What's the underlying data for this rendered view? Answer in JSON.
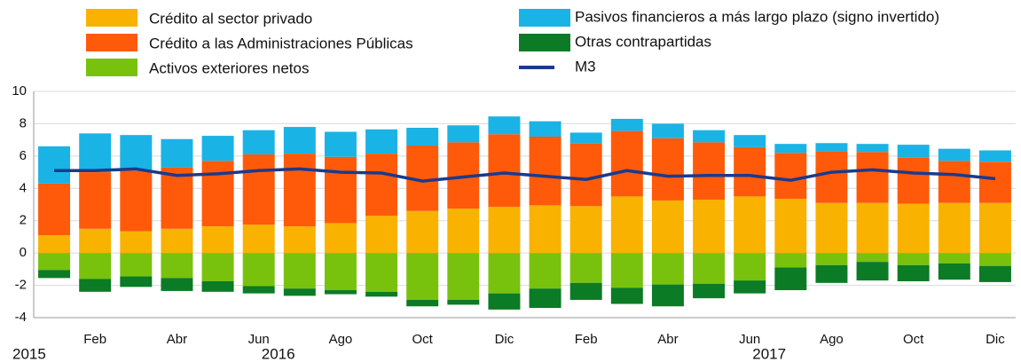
{
  "chart_data": {
    "type": "bar",
    "categories": [
      null,
      "Feb",
      null,
      "Abr",
      null,
      "Jun",
      null,
      "Ago",
      null,
      "Oct",
      null,
      "Dic",
      null,
      "Feb",
      null,
      "Abr",
      null,
      "Jun",
      null,
      "Ago",
      null,
      "Oct",
      null,
      "Dic"
    ],
    "year_labels": [
      "2015",
      "2016",
      "2017"
    ],
    "series": [
      {
        "name": "Crédito al sector privado",
        "color": "#f9b200",
        "values": [
          1.1,
          1.5,
          1.35,
          1.5,
          1.65,
          1.75,
          1.65,
          1.85,
          2.3,
          2.6,
          2.75,
          2.85,
          2.95,
          2.9,
          3.5,
          3.25,
          3.3,
          3.5,
          3.35,
          3.1,
          3.1,
          3.05,
          3.1,
          3.1
        ]
      },
      {
        "name": "Crédito a las Administraciones Públicas",
        "color": "#ff5a0a",
        "values": [
          3.2,
          3.5,
          3.75,
          3.8,
          4.05,
          4.35,
          4.5,
          4.1,
          3.85,
          4.05,
          4.1,
          4.5,
          4.25,
          3.9,
          4.05,
          3.85,
          3.55,
          3.05,
          2.85,
          3.2,
          3.15,
          2.85,
          2.6,
          2.55
        ]
      },
      {
        "name": "Activos exteriores netos",
        "color": "#78c20e",
        "values": [
          -1.05,
          -1.6,
          -1.45,
          -1.55,
          -1.75,
          -2.05,
          -2.2,
          -2.3,
          -2.4,
          -2.9,
          -2.9,
          -2.5,
          -2.2,
          -1.85,
          -2.15,
          -1.95,
          -1.9,
          -1.7,
          -0.9,
          -0.75,
          -0.55,
          -0.75,
          -0.65,
          -0.8
        ]
      },
      {
        "name": "Pasivos financieros a más largo plazo (signo invertido)",
        "color": "#1ab3e6",
        "values": [
          2.3,
          2.4,
          2.2,
          1.75,
          1.55,
          1.5,
          1.65,
          1.55,
          1.5,
          1.1,
          1.05,
          1.1,
          0.95,
          0.65,
          0.75,
          0.9,
          0.75,
          0.75,
          0.55,
          0.5,
          0.5,
          0.8,
          0.75,
          0.7
        ]
      },
      {
        "name": "Otras contrapartidas",
        "color": "#0b7b25",
        "values": [
          -0.5,
          -0.8,
          -0.65,
          -0.8,
          -0.65,
          -0.45,
          -0.45,
          -0.25,
          -0.3,
          -0.4,
          -0.3,
          -1.0,
          -1.2,
          -1.05,
          -1.0,
          -1.35,
          -0.9,
          -0.8,
          -1.4,
          -1.1,
          -1.15,
          -1.0,
          -1.0,
          -1.0
        ]
      },
      {
        "name": "M3",
        "type": "line",
        "color": "#1b3a8c",
        "values": [
          5.1,
          5.1,
          5.2,
          4.8,
          4.9,
          5.1,
          5.2,
          5.0,
          4.95,
          4.45,
          4.7,
          4.95,
          4.75,
          4.55,
          5.1,
          4.75,
          4.8,
          4.8,
          4.5,
          5.0,
          5.15,
          4.95,
          4.85,
          4.6
        ]
      }
    ],
    "stacked": true,
    "ylim": [
      -4,
      10
    ],
    "yticks": [
      -4,
      -2,
      0,
      2,
      4,
      6,
      8,
      10
    ],
    "grid": true
  }
}
